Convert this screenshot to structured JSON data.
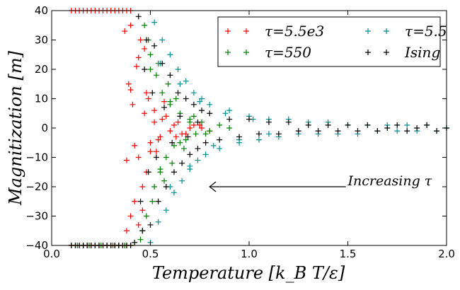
{
  "chart_data": {
    "type": "scatter",
    "title": "",
    "xlabel": "Temperature [k_B T/ε]",
    "ylabel": "Magnitization [m]",
    "xlim": [
      0.0,
      2.0
    ],
    "ylim": [
      -40,
      40
    ],
    "xticks": [
      "0.0",
      "0.5",
      "1.0",
      "1.5",
      "2.0"
    ],
    "yticks": [
      "−40",
      "−30",
      "−20",
      "−10",
      "0",
      "10",
      "20",
      "30",
      "40"
    ],
    "grid": false,
    "legend": {
      "placement": "top-right",
      "columns": 2
    },
    "annotation": {
      "text": "Increasing τ",
      "text_at": [
        1.5,
        -19
      ],
      "arrow_from": [
        1.49,
        -20
      ],
      "arrow_to": [
        0.8,
        -20
      ]
    },
    "series": [
      {
        "name": "τ=5.5e3",
        "color": "#ff0000",
        "marker": "+",
        "x": [
          0.1,
          0.12,
          0.14,
          0.16,
          0.18,
          0.2,
          0.22,
          0.24,
          0.26,
          0.28,
          0.3,
          0.32,
          0.34,
          0.36,
          0.38,
          0.4,
          0.1,
          0.12,
          0.14,
          0.16,
          0.18,
          0.2,
          0.22,
          0.24,
          0.26,
          0.28,
          0.3,
          0.32,
          0.34,
          0.36,
          0.38,
          0.4,
          0.37,
          0.38,
          0.39,
          0.4,
          0.41,
          0.42,
          0.43,
          0.44,
          0.45,
          0.46,
          0.47,
          0.48,
          0.49,
          0.5,
          0.52,
          0.55,
          0.58,
          0.62,
          0.66,
          0.7,
          0.75,
          0.8,
          0.38,
          0.4,
          0.42,
          0.44,
          0.46,
          0.48,
          0.5,
          0.52,
          0.54,
          0.56,
          0.6,
          0.64,
          0.68,
          0.72,
          0.76,
          0.4,
          0.44,
          0.47,
          0.53,
          0.57,
          0.63
        ],
        "y": [
          40,
          40,
          40,
          40,
          40,
          40,
          40,
          40,
          40,
          40,
          40,
          40,
          40,
          40,
          40,
          40,
          -40,
          -40,
          -40,
          -40,
          -40,
          -40,
          -40,
          -40,
          -40,
          -40,
          -40,
          -40,
          -40,
          -40,
          -40,
          -40,
          33,
          -35,
          15,
          -30,
          8,
          -25,
          21,
          -10,
          30,
          -28,
          5,
          -15,
          10,
          -5,
          2,
          -3,
          4,
          1,
          -2,
          0,
          1,
          -1,
          -11,
          13,
          -6,
          24,
          -20,
          12,
          -8,
          6,
          -4,
          3,
          -1,
          2,
          -2,
          1,
          0,
          35,
          -33,
          27,
          -8,
          9,
          -3
        ]
      },
      {
        "name": "τ=550",
        "color": "#008000",
        "marker": "+",
        "x": [
          0.1,
          0.13,
          0.16,
          0.19,
          0.22,
          0.25,
          0.28,
          0.31,
          0.34,
          0.37,
          0.4,
          0.45,
          0.47,
          0.48,
          0.5,
          0.52,
          0.53,
          0.55,
          0.56,
          0.58,
          0.6,
          0.62,
          0.65,
          0.68,
          0.7,
          0.73,
          0.76,
          0.8,
          0.85,
          0.9,
          0.46,
          0.49,
          0.51,
          0.54,
          0.57,
          0.59,
          0.61,
          0.63,
          0.67,
          0.72,
          0.78,
          0.5,
          0.55,
          0.6,
          0.65,
          0.7
        ],
        "y": [
          -40,
          -40,
          -40,
          -40,
          -40,
          -40,
          -40,
          -40,
          -40,
          -40,
          -40,
          -38,
          35,
          -30,
          25,
          -20,
          18,
          -15,
          12,
          -10,
          8,
          -6,
          5,
          -4,
          3,
          -2,
          2,
          -1,
          1,
          0,
          -35,
          30,
          -25,
          22,
          -18,
          15,
          -12,
          10,
          -7,
          4,
          -2,
          20,
          -14,
          9,
          -5,
          2
        ]
      },
      {
        "name": "τ=5.5",
        "color": "#009090",
        "marker": "+",
        "x": [
          0.5,
          0.52,
          0.54,
          0.56,
          0.58,
          0.6,
          0.62,
          0.64,
          0.66,
          0.68,
          0.7,
          0.72,
          0.74,
          0.76,
          0.78,
          0.8,
          0.85,
          0.9,
          0.95,
          1.0,
          1.05,
          1.1,
          1.15,
          1.2,
          1.25,
          1.3,
          1.35,
          1.4,
          1.45,
          1.5,
          1.55,
          1.6,
          1.65,
          1.7,
          1.75,
          1.8,
          1.85,
          1.9,
          1.95,
          2.0,
          0.55,
          0.6,
          0.65,
          0.7,
          0.75,
          0.82,
          0.88,
          0.95,
          1.02,
          1.1
        ],
        "y": [
          -39,
          36,
          -32,
          30,
          -28,
          25,
          -22,
          20,
          -18,
          16,
          -14,
          12,
          -11,
          10,
          -9,
          8,
          -7,
          6,
          -5,
          4,
          -4,
          3,
          -3,
          3,
          -2,
          2,
          -2,
          2,
          -2,
          1,
          -2,
          1,
          -1,
          1,
          -1,
          1,
          -1,
          1,
          -1,
          0,
          22,
          -20,
          15,
          -13,
          9,
          -6,
          5,
          -4,
          3,
          -2
        ]
      },
      {
        "name": "Ising",
        "color": "#000000",
        "marker": "+",
        "x": [
          0.1,
          0.12,
          0.14,
          0.16,
          0.18,
          0.2,
          0.22,
          0.24,
          0.26,
          0.28,
          0.3,
          0.32,
          0.34,
          0.36,
          0.38,
          0.4,
          0.42,
          0.44,
          0.46,
          0.48,
          0.5,
          0.52,
          0.54,
          0.56,
          0.58,
          0.6,
          0.62,
          0.64,
          0.66,
          0.68,
          0.7,
          0.72,
          0.74,
          0.76,
          0.78,
          0.8,
          0.85,
          0.9,
          0.95,
          1.0,
          1.05,
          1.1,
          1.15,
          1.2,
          1.25,
          1.3,
          1.35,
          1.4,
          1.45,
          1.5,
          1.55,
          1.6,
          1.65,
          1.7,
          1.75,
          1.8,
          1.85,
          1.9,
          1.95,
          2.0,
          0.45,
          0.47,
          0.49,
          0.51,
          0.53,
          0.57,
          0.61,
          0.65,
          0.69,
          0.74
        ],
        "y": [
          -40,
          -40,
          -40,
          -40,
          -40,
          -40,
          -40,
          -40,
          -40,
          -40,
          -40,
          -40,
          -40,
          -40,
          -40,
          -40,
          -39,
          38,
          -35,
          30,
          -33,
          28,
          -25,
          22,
          -20,
          18,
          -15,
          12,
          -12,
          10,
          -9,
          8,
          -7,
          6,
          -5,
          5,
          -4,
          3,
          -3,
          3,
          -2,
          2,
          -2,
          2,
          -1,
          1,
          -1,
          1,
          -1,
          1,
          -1,
          1,
          -1,
          0,
          1,
          -1,
          0,
          1,
          -1,
          0,
          -25,
          20,
          -15,
          12,
          -10,
          7,
          -5,
          4,
          -3,
          2
        ]
      }
    ]
  }
}
